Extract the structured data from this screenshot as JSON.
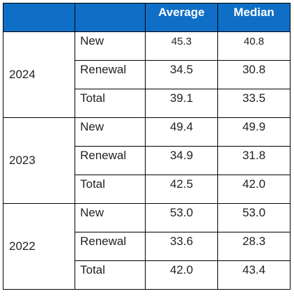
{
  "header": {
    "blank_1": "",
    "blank_2": "",
    "average": "Average",
    "median": "Median"
  },
  "colors": {
    "header_background": "#0f6fc6",
    "header_text": "#ffffff",
    "border": "#000000"
  },
  "groups": [
    {
      "year": "2024",
      "rows": [
        {
          "type": "New",
          "average": "45.3",
          "median": "40.8"
        },
        {
          "type": "Renewal",
          "average": "34.5",
          "median": "30.8"
        },
        {
          "type": "Total",
          "average": "39.1",
          "median": "33.5"
        }
      ]
    },
    {
      "year": "2023",
      "rows": [
        {
          "type": "New",
          "average": "49.4",
          "median": "49.9"
        },
        {
          "type": "Renewal",
          "average": "34.9",
          "median": "31.8"
        },
        {
          "type": "Total",
          "average": "42.5",
          "median": "42.0"
        }
      ]
    },
    {
      "year": "2022",
      "rows": [
        {
          "type": "New",
          "average": "53.0",
          "median": "53.0"
        },
        {
          "type": "Renewal",
          "average": "33.6",
          "median": "28.3"
        },
        {
          "type": "Total",
          "average": "42.0",
          "median": "43.4"
        }
      ]
    }
  ]
}
